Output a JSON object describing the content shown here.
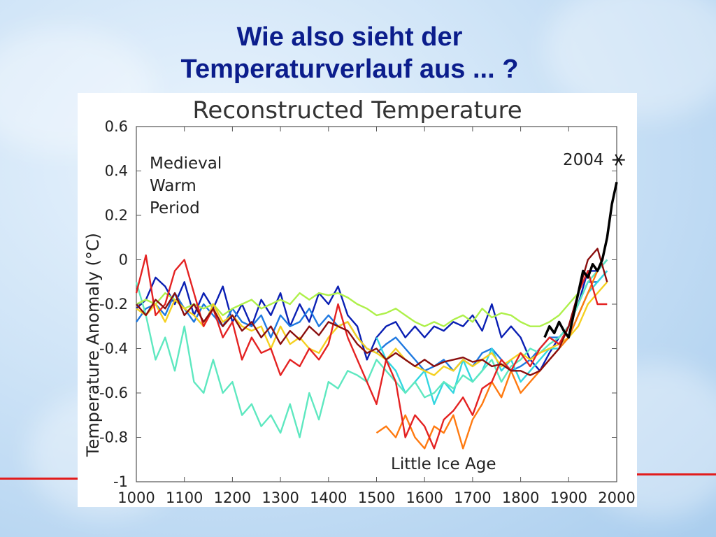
{
  "slide": {
    "title_line1": "Wie also sieht der",
    "title_line2": "Temperaturverlauf aus ... ?"
  },
  "colors": {
    "title": "#0b1d8c",
    "accent_line": "#e21c1c"
  },
  "chart_data": {
    "type": "line",
    "title": "Reconstructed Temperature",
    "xlabel": "",
    "ylabel": "Temperature Anomaly (°C)",
    "xlim": [
      1000,
      2000
    ],
    "ylim": [
      -1.0,
      0.6
    ],
    "xticks": [
      1000,
      1100,
      1200,
      1300,
      1400,
      1500,
      1600,
      1700,
      1800,
      1900,
      2000
    ],
    "yticks": [
      "0.6",
      "0.4",
      "0.2",
      "0",
      "-0.2",
      "-0.4",
      "-0.6",
      "-0.8",
      "-1"
    ],
    "grid": false,
    "annotations": {
      "medieval": [
        "Medieval",
        "Warm",
        "Period"
      ],
      "little_ice_age": "Little Ice Age",
      "marker_label": "2004",
      "marker_year": 2004,
      "marker_value": 0.45
    },
    "series": [
      {
        "color": "#0a1fb3",
        "x": [
          1000,
          1020,
          1040,
          1060,
          1080,
          1100,
          1120,
          1140,
          1160,
          1180,
          1200,
          1220,
          1240,
          1260,
          1280,
          1300,
          1320,
          1340,
          1360,
          1380,
          1400,
          1420,
          1440,
          1460,
          1480,
          1500,
          1520,
          1540,
          1560,
          1580,
          1600,
          1620,
          1640,
          1660,
          1680,
          1700,
          1720,
          1740,
          1760,
          1780,
          1800,
          1820,
          1840,
          1860,
          1880,
          1900,
          1920,
          1940,
          1960,
          1980
        ],
        "y": [
          -0.22,
          -0.18,
          -0.08,
          -0.12,
          -0.2,
          -0.1,
          -0.25,
          -0.15,
          -0.22,
          -0.12,
          -0.28,
          -0.2,
          -0.3,
          -0.18,
          -0.25,
          -0.15,
          -0.3,
          -0.2,
          -0.28,
          -0.15,
          -0.2,
          -0.12,
          -0.25,
          -0.3,
          -0.45,
          -0.35,
          -0.3,
          -0.28,
          -0.35,
          -0.3,
          -0.35,
          -0.3,
          -0.32,
          -0.28,
          -0.3,
          -0.25,
          -0.32,
          -0.2,
          -0.35,
          -0.3,
          -0.35,
          -0.45,
          -0.5,
          -0.42,
          -0.35,
          -0.3,
          -0.2,
          -0.05,
          -0.05,
          0.0
        ]
      },
      {
        "color": "#1e78e0",
        "x": [
          1000,
          1020,
          1040,
          1060,
          1080,
          1100,
          1120,
          1140,
          1160,
          1180,
          1200,
          1220,
          1240,
          1260,
          1280,
          1300,
          1320,
          1340,
          1360,
          1380,
          1400,
          1420,
          1440,
          1460,
          1480,
          1500,
          1520,
          1540,
          1560,
          1580,
          1600,
          1620,
          1640,
          1660,
          1680,
          1700,
          1720,
          1740,
          1760,
          1780,
          1800,
          1820,
          1840,
          1860,
          1880,
          1900,
          1920,
          1940,
          1960,
          1980
        ],
        "y": [
          -0.28,
          -0.22,
          -0.2,
          -0.25,
          -0.15,
          -0.22,
          -0.28,
          -0.2,
          -0.25,
          -0.3,
          -0.22,
          -0.28,
          -0.3,
          -0.25,
          -0.35,
          -0.25,
          -0.3,
          -0.28,
          -0.22,
          -0.3,
          -0.25,
          -0.3,
          -0.28,
          -0.35,
          -0.4,
          -0.42,
          -0.38,
          -0.35,
          -0.4,
          -0.45,
          -0.5,
          -0.48,
          -0.45,
          -0.5,
          -0.45,
          -0.48,
          -0.42,
          -0.4,
          -0.45,
          -0.5,
          -0.48,
          -0.45,
          -0.4,
          -0.35,
          -0.35,
          -0.3,
          -0.2,
          -0.1,
          -0.1,
          -0.05
        ]
      },
      {
        "color": "#33d6e0",
        "x": [
          1500,
          1520,
          1540,
          1560,
          1580,
          1600,
          1620,
          1640,
          1660,
          1680,
          1700,
          1720,
          1740,
          1760,
          1780,
          1800,
          1820,
          1840,
          1860,
          1880,
          1900,
          1920,
          1940,
          1960,
          1980
        ],
        "y": [
          -0.35,
          -0.45,
          -0.5,
          -0.6,
          -0.55,
          -0.5,
          -0.65,
          -0.55,
          -0.6,
          -0.45,
          -0.55,
          -0.5,
          -0.4,
          -0.5,
          -0.45,
          -0.55,
          -0.5,
          -0.45,
          -0.4,
          -0.4,
          -0.35,
          -0.25,
          -0.15,
          -0.1,
          -0.05
        ]
      },
      {
        "color": "#5ee8c0",
        "x": [
          1000,
          1020,
          1040,
          1060,
          1080,
          1100,
          1120,
          1140,
          1160,
          1180,
          1200,
          1220,
          1240,
          1260,
          1280,
          1300,
          1320,
          1340,
          1360,
          1380,
          1400,
          1420,
          1440,
          1460,
          1480,
          1500,
          1520,
          1540,
          1560,
          1580,
          1600,
          1620,
          1640,
          1660,
          1680,
          1700,
          1720,
          1740,
          1760,
          1780,
          1800,
          1820,
          1840,
          1860,
          1880,
          1900,
          1920,
          1940,
          1960,
          1980
        ],
        "y": [
          -0.1,
          -0.25,
          -0.45,
          -0.35,
          -0.5,
          -0.3,
          -0.55,
          -0.6,
          -0.45,
          -0.6,
          -0.55,
          -0.7,
          -0.65,
          -0.75,
          -0.7,
          -0.78,
          -0.65,
          -0.8,
          -0.6,
          -0.72,
          -0.55,
          -0.58,
          -0.5,
          -0.52,
          -0.55,
          -0.45,
          -0.5,
          -0.55,
          -0.6,
          -0.55,
          -0.62,
          -0.6,
          -0.55,
          -0.58,
          -0.52,
          -0.55,
          -0.5,
          -0.45,
          -0.55,
          -0.48,
          -0.45,
          -0.4,
          -0.42,
          -0.38,
          -0.35,
          -0.3,
          -0.2,
          -0.1,
          -0.05,
          0.0
        ]
      },
      {
        "color": "#aef04a",
        "x": [
          1000,
          1020,
          1040,
          1060,
          1080,
          1100,
          1120,
          1140,
          1160,
          1180,
          1200,
          1220,
          1240,
          1260,
          1280,
          1300,
          1320,
          1340,
          1360,
          1380,
          1400,
          1420,
          1440,
          1460,
          1480,
          1500,
          1520,
          1540,
          1560,
          1580,
          1600,
          1620,
          1640,
          1660,
          1680,
          1700,
          1720,
          1740,
          1760,
          1780,
          1800,
          1820,
          1840,
          1860,
          1880,
          1900,
          1920
        ],
        "y": [
          -0.2,
          -0.18,
          -0.2,
          -0.15,
          -0.18,
          -0.22,
          -0.2,
          -0.22,
          -0.2,
          -0.25,
          -0.22,
          -0.2,
          -0.18,
          -0.22,
          -0.2,
          -0.18,
          -0.2,
          -0.15,
          -0.18,
          -0.15,
          -0.16,
          -0.15,
          -0.17,
          -0.2,
          -0.22,
          -0.25,
          -0.24,
          -0.22,
          -0.25,
          -0.28,
          -0.3,
          -0.28,
          -0.3,
          -0.27,
          -0.25,
          -0.28,
          -0.22,
          -0.26,
          -0.24,
          -0.25,
          -0.28,
          -0.3,
          -0.3,
          -0.28,
          -0.25,
          -0.2,
          -0.15
        ]
      },
      {
        "color": "#f5d020",
        "x": [
          1000,
          1020,
          1040,
          1060,
          1080,
          1100,
          1120,
          1140,
          1160,
          1180,
          1200,
          1220,
          1240,
          1260,
          1280,
          1300,
          1320,
          1340,
          1360,
          1380,
          1400,
          1420,
          1440,
          1460,
          1480,
          1500,
          1520,
          1540,
          1560,
          1580,
          1600,
          1620,
          1640,
          1660,
          1680,
          1700,
          1720,
          1740,
          1760,
          1780,
          1800,
          1820,
          1840,
          1860,
          1880,
          1900,
          1920,
          1940,
          1960,
          1980
        ],
        "y": [
          -0.22,
          -0.25,
          -0.2,
          -0.28,
          -0.18,
          -0.22,
          -0.25,
          -0.3,
          -0.2,
          -0.28,
          -0.25,
          -0.3,
          -0.32,
          -0.3,
          -0.4,
          -0.3,
          -0.38,
          -0.35,
          -0.4,
          -0.42,
          -0.35,
          -0.3,
          -0.28,
          -0.35,
          -0.4,
          -0.42,
          -0.45,
          -0.4,
          -0.45,
          -0.48,
          -0.5,
          -0.52,
          -0.48,
          -0.5,
          -0.45,
          -0.48,
          -0.45,
          -0.42,
          -0.48,
          -0.45,
          -0.42,
          -0.45,
          -0.42,
          -0.4,
          -0.38,
          -0.35,
          -0.3,
          -0.2,
          -0.15,
          -0.1
        ]
      },
      {
        "color": "#ff7a10",
        "x": [
          1500,
          1520,
          1540,
          1560,
          1580,
          1600,
          1620,
          1640,
          1660,
          1680,
          1700,
          1720,
          1740,
          1760,
          1780,
          1800,
          1820,
          1840,
          1860,
          1880,
          1900,
          1920,
          1940,
          1960
        ],
        "y": [
          -0.78,
          -0.75,
          -0.8,
          -0.7,
          -0.8,
          -0.85,
          -0.75,
          -0.78,
          -0.7,
          -0.85,
          -0.72,
          -0.65,
          -0.55,
          -0.62,
          -0.5,
          -0.6,
          -0.55,
          -0.5,
          -0.45,
          -0.4,
          -0.35,
          -0.25,
          -0.15,
          -0.05
        ]
      },
      {
        "color": "#e42222",
        "x": [
          1000,
          1020,
          1040,
          1060,
          1080,
          1100,
          1120,
          1140,
          1160,
          1180,
          1200,
          1220,
          1240,
          1260,
          1280,
          1300,
          1320,
          1340,
          1360,
          1380,
          1400,
          1420,
          1440,
          1460,
          1480,
          1500,
          1520,
          1540,
          1560,
          1580,
          1600,
          1620,
          1640,
          1660,
          1680,
          1700,
          1720,
          1740,
          1760,
          1780,
          1800,
          1820,
          1840,
          1860,
          1880,
          1900,
          1920,
          1940,
          1960,
          1980
        ],
        "y": [
          -0.15,
          0.02,
          -0.25,
          -0.2,
          -0.05,
          0.0,
          -0.15,
          -0.3,
          -0.22,
          -0.35,
          -0.28,
          -0.45,
          -0.35,
          -0.42,
          -0.4,
          -0.52,
          -0.45,
          -0.48,
          -0.4,
          -0.45,
          -0.38,
          -0.2,
          -0.35,
          -0.45,
          -0.55,
          -0.65,
          -0.45,
          -0.55,
          -0.8,
          -0.7,
          -0.75,
          -0.85,
          -0.72,
          -0.68,
          -0.62,
          -0.7,
          -0.58,
          -0.55,
          -0.45,
          -0.5,
          -0.42,
          -0.48,
          -0.4,
          -0.35,
          -0.38,
          -0.3,
          -0.15,
          -0.05,
          -0.2,
          -0.2
        ]
      },
      {
        "color": "#8a0e0e",
        "x": [
          1000,
          1020,
          1040,
          1060,
          1080,
          1100,
          1120,
          1140,
          1160,
          1180,
          1200,
          1220,
          1240,
          1260,
          1280,
          1300,
          1320,
          1340,
          1360,
          1380,
          1400,
          1420,
          1440,
          1460,
          1480,
          1500,
          1520,
          1540,
          1560,
          1580,
          1600,
          1620,
          1640,
          1660,
          1680,
          1700,
          1720,
          1740,
          1760,
          1780,
          1800,
          1820,
          1840,
          1860,
          1880,
          1900,
          1920,
          1940,
          1960,
          1980
        ],
        "y": [
          -0.2,
          -0.25,
          -0.18,
          -0.22,
          -0.15,
          -0.25,
          -0.2,
          -0.28,
          -0.22,
          -0.3,
          -0.25,
          -0.32,
          -0.28,
          -0.35,
          -0.3,
          -0.38,
          -0.32,
          -0.36,
          -0.3,
          -0.34,
          -0.28,
          -0.3,
          -0.32,
          -0.38,
          -0.42,
          -0.4,
          -0.45,
          -0.42,
          -0.45,
          -0.48,
          -0.45,
          -0.48,
          -0.46,
          -0.45,
          -0.44,
          -0.46,
          -0.45,
          -0.48,
          -0.47,
          -0.5,
          -0.5,
          -0.52,
          -0.5,
          -0.45,
          -0.4,
          -0.3,
          -0.15,
          0.0,
          0.05,
          -0.1
        ]
      },
      {
        "color": "#000000",
        "width": 3.5,
        "x": [
          1850,
          1860,
          1870,
          1880,
          1890,
          1900,
          1910,
          1920,
          1930,
          1940,
          1950,
          1960,
          1970,
          1980,
          1990,
          2000
        ],
        "y": [
          -0.35,
          -0.3,
          -0.33,
          -0.28,
          -0.32,
          -0.35,
          -0.25,
          -0.15,
          -0.05,
          -0.08,
          -0.02,
          -0.05,
          0.0,
          0.1,
          0.25,
          0.35
        ]
      }
    ]
  }
}
